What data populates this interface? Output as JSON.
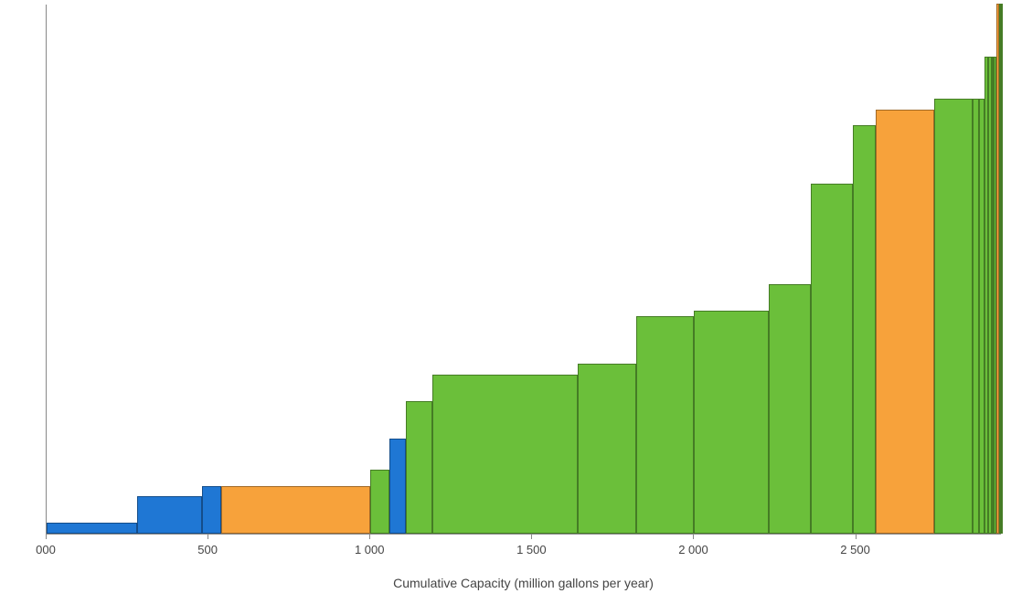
{
  "chart": {
    "type": "variable-width-bar",
    "xlabel": "Cumulative Capacity (million gallons per year)",
    "xlabel_fontsize": 14,
    "xlabel_color": "#444444",
    "xlim": [
      0,
      2950
    ],
    "xtick_positions": [
      0,
      500,
      1000,
      1500,
      2000,
      2500
    ],
    "xtick_labels": [
      "000",
      "500",
      "1 000",
      "1 500",
      "2 000",
      "2 500"
    ],
    "tick_fontsize": 13,
    "tick_color": "#444444",
    "ylim": [
      0,
      100
    ],
    "background_color": "#ffffff",
    "axis_color": "#888888",
    "bar_border_color": "rgba(0,0,0,0.35)",
    "colors": {
      "blue": "#1f77d4",
      "orange": "#f7a23b",
      "green": "#6bbf3a"
    },
    "bars": [
      {
        "x0": 0,
        "x1": 280,
        "height": 2,
        "color": "blue"
      },
      {
        "x0": 280,
        "x1": 480,
        "height": 7,
        "color": "blue"
      },
      {
        "x0": 480,
        "x1": 540,
        "height": 9,
        "color": "blue"
      },
      {
        "x0": 540,
        "x1": 1000,
        "height": 9,
        "color": "orange"
      },
      {
        "x0": 1000,
        "x1": 1060,
        "height": 12,
        "color": "green"
      },
      {
        "x0": 1060,
        "x1": 1110,
        "height": 18,
        "color": "blue"
      },
      {
        "x0": 1110,
        "x1": 1190,
        "height": 25,
        "color": "green"
      },
      {
        "x0": 1190,
        "x1": 1640,
        "height": 30,
        "color": "green"
      },
      {
        "x0": 1640,
        "x1": 1820,
        "height": 32,
        "color": "green"
      },
      {
        "x0": 1820,
        "x1": 2000,
        "height": 41,
        "color": "green"
      },
      {
        "x0": 2000,
        "x1": 2230,
        "height": 42,
        "color": "green"
      },
      {
        "x0": 2230,
        "x1": 2360,
        "height": 47,
        "color": "green"
      },
      {
        "x0": 2360,
        "x1": 2490,
        "height": 66,
        "color": "green"
      },
      {
        "x0": 2490,
        "x1": 2560,
        "height": 77,
        "color": "green"
      },
      {
        "x0": 2560,
        "x1": 2740,
        "height": 80,
        "color": "orange"
      },
      {
        "x0": 2740,
        "x1": 2860,
        "height": 82,
        "color": "green"
      },
      {
        "x0": 2860,
        "x1": 2880,
        "height": 82,
        "color": "green"
      },
      {
        "x0": 2880,
        "x1": 2895,
        "height": 82,
        "color": "green"
      },
      {
        "x0": 2895,
        "x1": 2908,
        "height": 90,
        "color": "green"
      },
      {
        "x0": 2908,
        "x1": 2918,
        "height": 90,
        "color": "green"
      },
      {
        "x0": 2918,
        "x1": 2926,
        "height": 90,
        "color": "green"
      },
      {
        "x0": 2926,
        "x1": 2934,
        "height": 90,
        "color": "green"
      },
      {
        "x0": 2934,
        "x1": 2942,
        "height": 100,
        "color": "orange"
      },
      {
        "x0": 2942,
        "x1": 2946,
        "height": 100,
        "color": "green"
      },
      {
        "x0": 2946,
        "x1": 2950,
        "height": 100,
        "color": "green"
      }
    ]
  }
}
